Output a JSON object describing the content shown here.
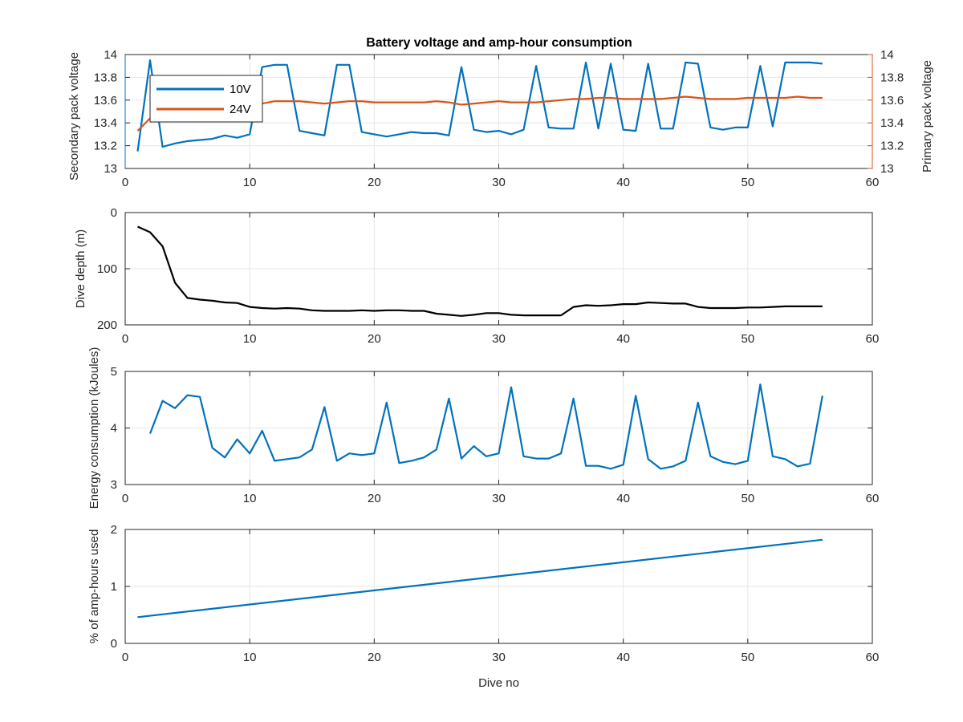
{
  "figure": {
    "title": "Battery voltage and amp-hour consumption",
    "colors": {
      "blue": "#0072BD",
      "orange": "#D95319",
      "black": "#000000",
      "grid": "#e6e6e6",
      "axis": "#262626"
    }
  },
  "chart_data": [
    {
      "type": "line",
      "title": "Battery voltage and amp-hour consumption",
      "xlabel": "",
      "ylabel_left": "Secondary pack voltage",
      "ylabel_right": "Primary pack voltage",
      "xlim": [
        0,
        60
      ],
      "xticks": [
        "0",
        "10",
        "20",
        "30",
        "40",
        "50",
        "60"
      ],
      "ylim": [
        13,
        14
      ],
      "yticks": [
        "13",
        "13.2",
        "13.4",
        "13.6",
        "13.8",
        "14"
      ],
      "yticks_right": [
        "13",
        "13.2",
        "13.4",
        "13.6",
        "13.8",
        "14"
      ],
      "grid": true,
      "legend": {
        "placement": "top-left",
        "entries": [
          "10V",
          "24V"
        ]
      },
      "x": [
        1,
        2,
        3,
        4,
        5,
        6,
        7,
        8,
        9,
        10,
        11,
        12,
        13,
        14,
        15,
        16,
        17,
        18,
        19,
        20,
        21,
        22,
        23,
        24,
        25,
        26,
        27,
        28,
        29,
        30,
        31,
        32,
        33,
        34,
        35,
        36,
        37,
        38,
        39,
        40,
        41,
        42,
        43,
        44,
        45,
        46,
        47,
        48,
        49,
        50,
        51,
        52,
        53,
        54,
        55,
        56
      ],
      "series": [
        {
          "name": "10V",
          "color": "#0072BD",
          "axis": "left",
          "values": [
            13.15,
            13.95,
            13.19,
            13.22,
            13.24,
            13.25,
            13.26,
            13.29,
            13.27,
            13.3,
            13.89,
            13.91,
            13.91,
            13.33,
            13.31,
            13.29,
            13.91,
            13.91,
            13.32,
            13.3,
            13.28,
            13.3,
            13.32,
            13.31,
            13.31,
            13.29,
            13.89,
            13.34,
            13.32,
            13.33,
            13.3,
            13.34,
            13.9,
            13.36,
            13.35,
            13.35,
            13.93,
            13.35,
            13.92,
            13.34,
            13.33,
            13.92,
            13.35,
            13.35,
            13.93,
            13.92,
            13.36,
            13.34,
            13.36,
            13.36,
            13.9,
            13.37,
            13.93,
            13.93,
            13.93,
            13.92
          ]
        },
        {
          "name": "24V",
          "color": "#D95319",
          "axis": "right",
          "values": [
            13.33,
            13.44,
            13.5,
            13.54,
            13.56,
            13.57,
            13.57,
            13.58,
            13.58,
            13.57,
            13.57,
            13.59,
            13.59,
            13.59,
            13.58,
            13.57,
            13.58,
            13.59,
            13.59,
            13.58,
            13.58,
            13.58,
            13.58,
            13.58,
            13.59,
            13.58,
            13.56,
            13.57,
            13.58,
            13.59,
            13.58,
            13.58,
            13.58,
            13.59,
            13.6,
            13.61,
            13.61,
            13.62,
            13.62,
            13.61,
            13.61,
            13.61,
            13.61,
            13.62,
            13.63,
            13.62,
            13.61,
            13.61,
            13.61,
            13.62,
            13.62,
            13.62,
            13.62,
            13.63,
            13.62,
            13.62
          ]
        }
      ]
    },
    {
      "type": "line",
      "xlabel": "",
      "ylabel": "Dive depth (m)",
      "xlim": [
        0,
        60
      ],
      "xticks": [
        "0",
        "10",
        "20",
        "30",
        "40",
        "50",
        "60"
      ],
      "ylim": [
        0,
        200
      ],
      "yreversed": true,
      "yticks": [
        "0",
        "100",
        "200"
      ],
      "grid": true,
      "x": [
        1,
        2,
        3,
        4,
        5,
        6,
        7,
        8,
        9,
        10,
        11,
        12,
        13,
        14,
        15,
        16,
        17,
        18,
        19,
        20,
        21,
        22,
        23,
        24,
        25,
        26,
        27,
        28,
        29,
        30,
        31,
        32,
        33,
        34,
        35,
        36,
        37,
        38,
        39,
        40,
        41,
        42,
        43,
        44,
        45,
        46,
        47,
        48,
        49,
        50,
        51,
        52,
        53,
        54,
        55,
        56
      ],
      "series": [
        {
          "color": "#000000",
          "values": [
            25,
            35,
            60,
            125,
            152,
            155,
            157,
            160,
            161,
            168,
            170,
            171,
            170,
            171,
            174,
            175,
            175,
            175,
            174,
            175,
            174,
            174,
            175,
            175,
            180,
            182,
            184,
            182,
            179,
            179,
            182,
            183,
            183,
            183,
            183,
            168,
            165,
            166,
            165,
            163,
            163,
            160,
            161,
            162,
            162,
            168,
            170,
            170,
            170,
            169,
            169,
            168,
            167,
            167,
            167,
            167
          ]
        }
      ]
    },
    {
      "type": "line",
      "xlabel": "",
      "ylabel": "Energy consumption (kJoules)",
      "xlim": [
        0,
        60
      ],
      "xticks": [
        "0",
        "10",
        "20",
        "30",
        "40",
        "50",
        "60"
      ],
      "ylim": [
        3,
        5
      ],
      "yticks": [
        "3",
        "4",
        "5"
      ],
      "grid": true,
      "x": [
        2,
        3,
        4,
        5,
        6,
        7,
        8,
        9,
        10,
        11,
        12,
        13,
        14,
        15,
        16,
        17,
        18,
        19,
        20,
        21,
        22,
        23,
        24,
        25,
        26,
        27,
        28,
        29,
        30,
        31,
        32,
        33,
        34,
        35,
        36,
        37,
        38,
        39,
        40,
        41,
        42,
        43,
        44,
        45,
        46,
        47,
        48,
        49,
        50,
        51,
        52,
        53,
        54,
        55,
        56
      ],
      "series": [
        {
          "color": "#0072BD",
          "values": [
            3.9,
            4.48,
            4.35,
            4.58,
            4.55,
            3.65,
            3.48,
            3.8,
            3.55,
            3.95,
            3.42,
            3.45,
            3.48,
            3.62,
            4.37,
            3.42,
            3.55,
            3.52,
            3.55,
            4.45,
            3.38,
            3.42,
            3.48,
            3.62,
            4.52,
            3.46,
            3.68,
            3.5,
            3.55,
            4.72,
            3.5,
            3.46,
            3.46,
            3.55,
            4.52,
            3.33,
            3.33,
            3.28,
            3.35,
            4.57,
            3.45,
            3.28,
            3.32,
            3.42,
            4.45,
            3.5,
            3.4,
            3.36,
            3.42,
            4.77,
            3.5,
            3.45,
            3.32,
            3.37,
            4.57
          ]
        }
      ]
    },
    {
      "type": "line",
      "xlabel": "Dive no",
      "ylabel": "% of amp-hours used",
      "xlim": [
        0,
        60
      ],
      "xticks": [
        "0",
        "10",
        "20",
        "30",
        "40",
        "50",
        "60"
      ],
      "ylim": [
        0,
        2
      ],
      "yticks": [
        "0",
        "1",
        "2"
      ],
      "grid": true,
      "x": [
        1,
        56
      ],
      "series": [
        {
          "color": "#0072BD",
          "values": [
            0.46,
            1.82
          ]
        }
      ]
    }
  ]
}
